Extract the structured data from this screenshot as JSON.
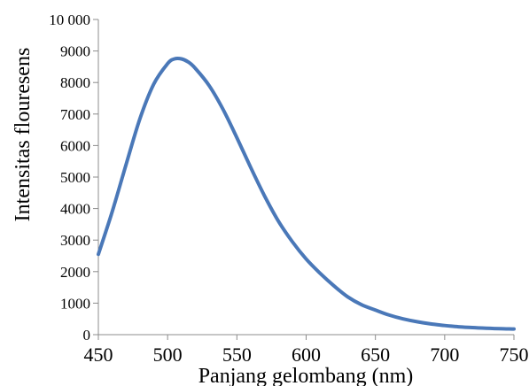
{
  "chart_data": {
    "type": "line",
    "title": "",
    "xlabel": "Panjang gelombang (nm)",
    "ylabel": "Intensitas flouresens",
    "xlim": [
      450,
      750
    ],
    "ylim": [
      0,
      10000
    ],
    "x_ticks": [
      450,
      500,
      550,
      600,
      650,
      700,
      750
    ],
    "x_tick_labels": [
      "450",
      "500",
      "550",
      "600",
      "650",
      "700",
      "750"
    ],
    "y_ticks": [
      0,
      1000,
      2000,
      3000,
      4000,
      5000,
      6000,
      7000,
      8000,
      9000,
      10000
    ],
    "y_tick_labels": [
      "0",
      "1000",
      "2000",
      "3000",
      "4000",
      "5000",
      "6000",
      "7000",
      "8000",
      "9000",
      "10 000"
    ],
    "grid": false,
    "legend": "none",
    "line_color": "#4a78b8",
    "series": [
      {
        "x": [
          450,
          460,
          470,
          480,
          490,
          500,
          505,
          510,
          515,
          520,
          530,
          540,
          550,
          560,
          570,
          580,
          590,
          600,
          610,
          620,
          630,
          640,
          650,
          660,
          670,
          680,
          690,
          700,
          710,
          720,
          730,
          740,
          750
        ],
        "values": [
          2550,
          3900,
          5400,
          6850,
          7950,
          8600,
          8750,
          8750,
          8650,
          8450,
          7900,
          7150,
          6250,
          5300,
          4400,
          3600,
          2950,
          2400,
          1950,
          1550,
          1200,
          950,
          780,
          620,
          500,
          410,
          340,
          290,
          250,
          225,
          205,
          190,
          180
        ]
      }
    ]
  }
}
